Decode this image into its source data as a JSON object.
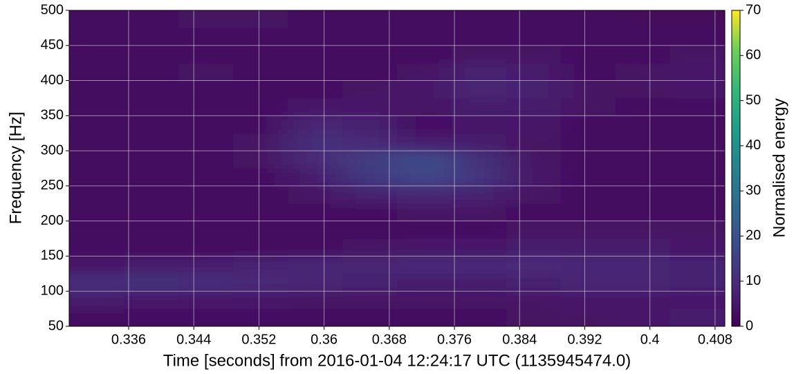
{
  "chart_data": {
    "type": "heatmap",
    "xlabel": "Time [seconds] from 2016-01-04 12:24:17 UTC (1135945474.0)",
    "ylabel": "Frequency [Hz]",
    "colorbar_label": "Normalised energy",
    "colormap": "viridis",
    "grid": true,
    "xlim": [
      0.3287,
      0.4092
    ],
    "ylim": [
      50,
      500
    ],
    "clim": [
      0,
      70
    ],
    "xticks": [
      0.336,
      0.344,
      0.352,
      0.36,
      0.368,
      0.376,
      0.384,
      0.392,
      0.4,
      0.408
    ],
    "yticks": [
      50,
      100,
      150,
      200,
      250,
      300,
      350,
      400,
      450,
      500
    ],
    "cticks": [
      0,
      10,
      20,
      30,
      40,
      50,
      60,
      70
    ],
    "x": [
      0.3321,
      0.3388,
      0.3455,
      0.3522,
      0.3589,
      0.3656,
      0.3723,
      0.379,
      0.3857,
      0.3924,
      0.3991,
      0.4058
    ],
    "y": [
      62.5,
      87.5,
      112.5,
      137.5,
      162.5,
      187.5,
      212.5,
      237.5,
      262.5,
      287.5,
      312.5,
      337.5,
      362.5,
      387.5,
      412.5,
      437.5,
      462.5,
      487.5
    ],
    "z": [
      [
        3,
        3,
        3,
        3,
        3,
        3,
        3,
        3,
        4,
        4,
        5,
        6
      ],
      [
        6,
        5,
        5,
        5,
        4,
        4,
        4,
        4,
        4,
        5,
        5,
        5
      ],
      [
        10,
        11,
        10,
        9,
        8,
        7,
        6,
        6,
        7,
        8,
        8,
        7
      ],
      [
        5,
        6,
        6,
        7,
        8,
        8,
        9,
        9,
        9,
        8,
        8,
        7
      ],
      [
        3,
        3,
        3,
        3,
        3,
        4,
        5,
        5,
        6,
        6,
        6,
        5
      ],
      [
        3,
        3,
        3,
        3,
        3,
        3,
        3,
        3,
        4,
        4,
        4,
        4
      ],
      [
        3,
        3,
        3,
        3,
        3,
        3,
        4,
        4,
        3,
        3,
        3,
        3
      ],
      [
        3,
        3,
        3,
        3,
        4,
        7,
        8,
        7,
        4,
        3,
        3,
        3
      ],
      [
        3,
        3,
        3,
        3,
        6,
        13,
        17,
        12,
        5,
        3,
        3,
        3
      ],
      [
        3,
        3,
        3,
        4,
        9,
        14,
        18,
        11,
        4,
        3,
        3,
        3
      ],
      [
        3,
        3,
        3,
        4,
        10,
        9,
        6,
        6,
        4,
        3,
        3,
        3
      ],
      [
        3,
        3,
        3,
        3,
        8,
        7,
        3,
        5,
        5,
        3,
        3,
        3
      ],
      [
        3,
        3,
        3,
        3,
        5,
        5,
        4,
        6,
        6,
        4,
        3,
        3
      ],
      [
        3,
        3,
        3,
        3,
        3,
        4,
        5,
        8,
        7,
        4,
        4,
        5
      ],
      [
        3,
        3,
        4,
        3,
        3,
        3,
        4,
        7,
        6,
        3,
        4,
        5
      ],
      [
        3,
        3,
        3,
        3,
        3,
        3,
        3,
        4,
        4,
        3,
        3,
        4
      ],
      [
        3,
        3,
        3,
        3,
        3,
        3,
        3,
        3,
        3,
        3,
        3,
        3
      ],
      [
        3,
        3,
        4,
        4,
        3,
        3,
        3,
        3,
        3,
        3,
        2,
        2
      ]
    ]
  }
}
